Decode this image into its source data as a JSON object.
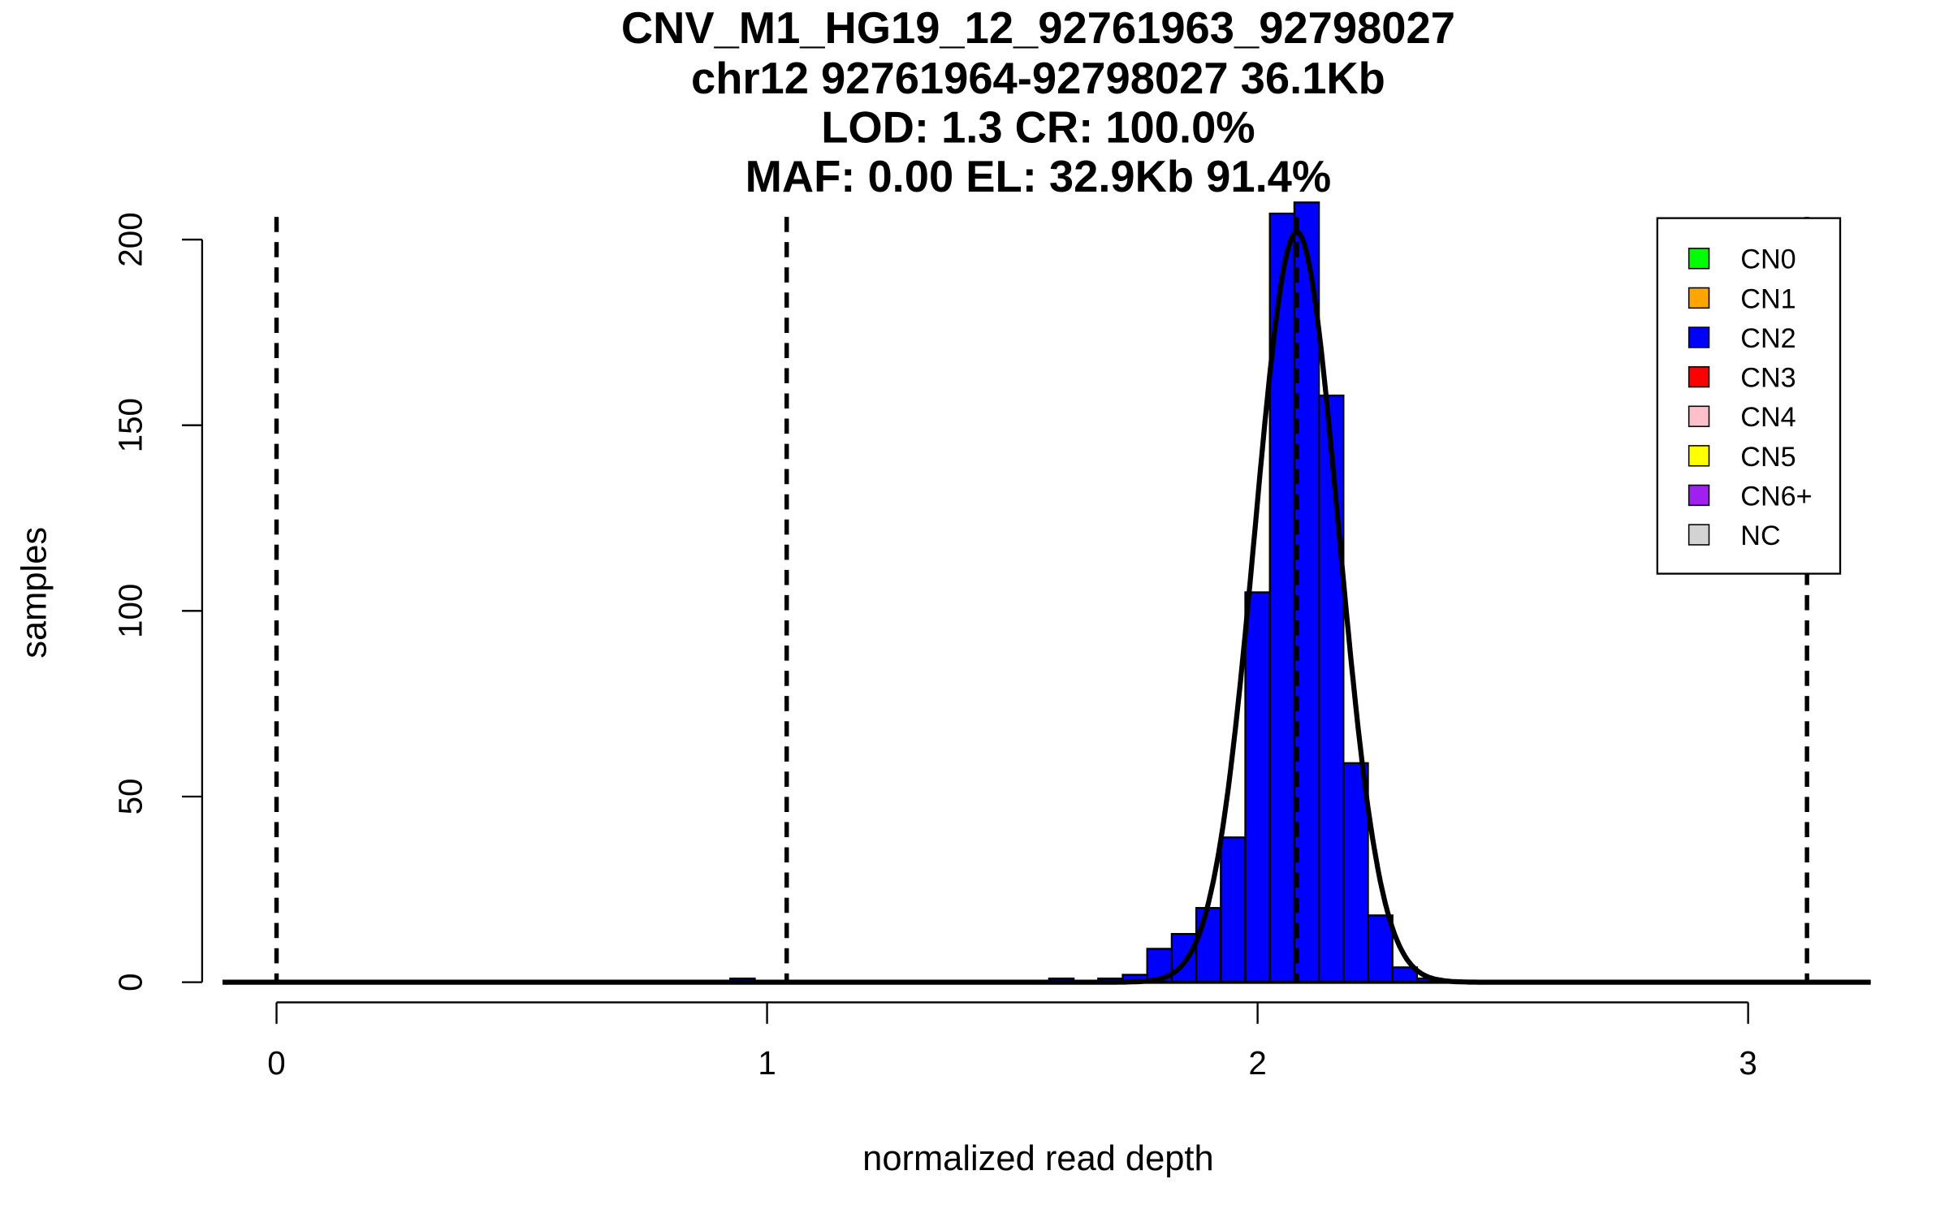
{
  "chart_data": {
    "type": "bar",
    "title_lines": [
      "CNV_M1_HG19_12_92761963_92798027",
      "chr12 92761964-92798027 36.1Kb",
      "LOD: 1.3 CR: 100.0%",
      "MAF: 0.00 EL: 32.9Kb 91.4%"
    ],
    "xlabel": "normalized read depth",
    "ylabel": "samples",
    "xlim": [
      -0.11,
      3.25
    ],
    "ylim": [
      0,
      210
    ],
    "xticks": [
      "0",
      "1",
      "2",
      "3"
    ],
    "yticks": [
      "0",
      "50",
      "100",
      "150",
      "200"
    ],
    "bin_width": 0.05,
    "bins": [
      {
        "start": 0.925,
        "count": 1
      },
      {
        "start": 1.575,
        "count": 1
      },
      {
        "start": 1.675,
        "count": 1
      },
      {
        "start": 1.725,
        "count": 2
      },
      {
        "start": 1.775,
        "count": 9
      },
      {
        "start": 1.825,
        "count": 13
      },
      {
        "start": 1.875,
        "count": 20
      },
      {
        "start": 1.925,
        "count": 39
      },
      {
        "start": 1.975,
        "count": 105
      },
      {
        "start": 2.025,
        "count": 207
      },
      {
        "start": 2.075,
        "count": 210
      },
      {
        "start": 2.125,
        "count": 158
      },
      {
        "start": 2.175,
        "count": 59
      },
      {
        "start": 2.225,
        "count": 18
      },
      {
        "start": 2.275,
        "count": 4
      },
      {
        "start": 2.325,
        "count": 1
      }
    ],
    "bar_color": "#0000ff",
    "fit_curve": {
      "type": "normal",
      "mean": 2.08,
      "sd": 0.085,
      "peak": 202
    },
    "dashed_lines": [
      0,
      1.04,
      2.08,
      3.12
    ],
    "legend": {
      "placement": "top-right",
      "entries": [
        {
          "label": "CN0",
          "color": "#00ff00"
        },
        {
          "label": "CN1",
          "color": "#ffa500"
        },
        {
          "label": "CN2",
          "color": "#0000ff"
        },
        {
          "label": "CN3",
          "color": "#ff0000"
        },
        {
          "label": "CN4",
          "color": "#ffc0cb"
        },
        {
          "label": "CN5",
          "color": "#ffff00"
        },
        {
          "label": "CN6+",
          "color": "#a020f0"
        },
        {
          "label": "NC",
          "color": "#d3d3d3"
        }
      ]
    }
  }
}
